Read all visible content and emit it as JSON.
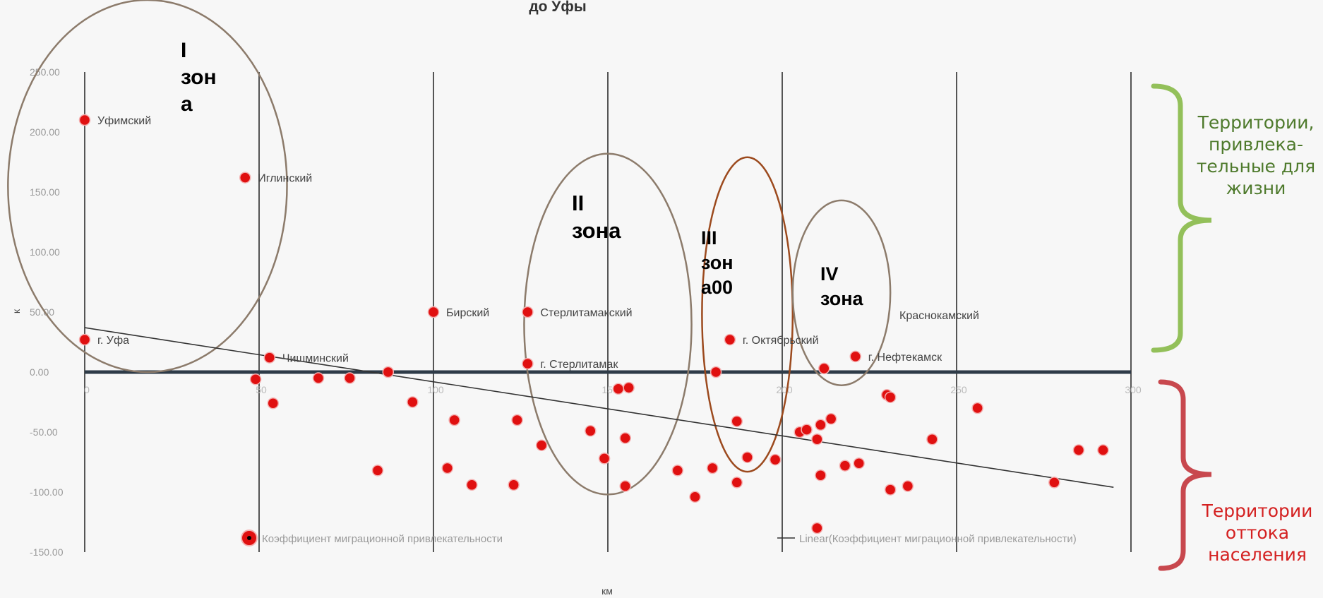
{
  "title": "до Уфы",
  "chart_data": {
    "type": "scatter",
    "title": "до Уфы",
    "xlabel": "км",
    "ylabel": "к",
    "xlim": [
      0,
      300
    ],
    "ylim": [
      -150,
      250
    ],
    "x_ticks": [
      "0",
      "50",
      "100",
      "150",
      "200",
      "250",
      "300"
    ],
    "y_ticks": [
      "250.00",
      "200.00",
      "150.00",
      "100.00",
      "50.00",
      "0.00",
      "-50.00",
      "-100.00",
      "-150.00"
    ],
    "grid": "vertical",
    "series": [
      {
        "name": "Коэффициент миграционной привлекательности",
        "color": "#e01010",
        "points": [
          {
            "x": 0,
            "y": 210,
            "label": "Уфимский"
          },
          {
            "x": 46,
            "y": 162,
            "label": "Иглинский"
          },
          {
            "x": 0,
            "y": 27,
            "label": "г. Уфа"
          },
          {
            "x": 53,
            "y": 12,
            "label": "Чишминский"
          },
          {
            "x": 100,
            "y": 50,
            "label": "Бирский"
          },
          {
            "x": 127,
            "y": 50,
            "label": "Стерлитамакский"
          },
          {
            "x": 127,
            "y": 7,
            "label": "г. Стерлитамак"
          },
          {
            "x": 185,
            "y": 27,
            "label": "г. Октябрьский"
          },
          {
            "x": 221,
            "y": 13,
            "label": "г. Нефтекамск"
          },
          {
            "x": 49,
            "y": -6,
            "label": ""
          },
          {
            "x": 54,
            "y": -26,
            "label": ""
          },
          {
            "x": 67,
            "y": -5,
            "label": ""
          },
          {
            "x": 76,
            "y": -5,
            "label": ""
          },
          {
            "x": 87,
            "y": 0,
            "label": ""
          },
          {
            "x": 94,
            "y": -25,
            "label": ""
          },
          {
            "x": 84,
            "y": -82,
            "label": ""
          },
          {
            "x": 104,
            "y": -80,
            "label": ""
          },
          {
            "x": 106,
            "y": -40,
            "label": ""
          },
          {
            "x": 111,
            "y": -94,
            "label": ""
          },
          {
            "x": 123,
            "y": -94,
            "label": ""
          },
          {
            "x": 124,
            "y": -40,
            "label": ""
          },
          {
            "x": 131,
            "y": -61,
            "label": ""
          },
          {
            "x": 145,
            "y": -49,
            "label": ""
          },
          {
            "x": 149,
            "y": -72,
            "label": ""
          },
          {
            "x": 153,
            "y": -14,
            "label": ""
          },
          {
            "x": 156,
            "y": -13,
            "label": ""
          },
          {
            "x": 155,
            "y": -55,
            "label": ""
          },
          {
            "x": 155,
            "y": -95,
            "label": ""
          },
          {
            "x": 170,
            "y": -82,
            "label": ""
          },
          {
            "x": 175,
            "y": -104,
            "label": ""
          },
          {
            "x": 180,
            "y": -80,
            "label": ""
          },
          {
            "x": 181,
            "y": 0,
            "label": ""
          },
          {
            "x": 187,
            "y": -41,
            "label": ""
          },
          {
            "x": 187,
            "y": -92,
            "label": ""
          },
          {
            "x": 190,
            "y": -71,
            "label": ""
          },
          {
            "x": 198,
            "y": -73,
            "label": ""
          },
          {
            "x": 205,
            "y": -50,
            "label": ""
          },
          {
            "x": 207,
            "y": -48,
            "label": ""
          },
          {
            "x": 210,
            "y": -56,
            "label": ""
          },
          {
            "x": 211,
            "y": -44,
            "label": ""
          },
          {
            "x": 212,
            "y": 3,
            "label": ""
          },
          {
            "x": 211,
            "y": -86,
            "label": ""
          },
          {
            "x": 210,
            "y": -130,
            "label": ""
          },
          {
            "x": 214,
            "y": -39,
            "label": ""
          },
          {
            "x": 218,
            "y": -78,
            "label": ""
          },
          {
            "x": 222,
            "y": -76,
            "label": ""
          },
          {
            "x": 230,
            "y": -19,
            "label": ""
          },
          {
            "x": 231,
            "y": -21,
            "label": ""
          },
          {
            "x": 231,
            "y": -98,
            "label": ""
          },
          {
            "x": 236,
            "y": -95,
            "label": ""
          },
          {
            "x": 243,
            "y": -56,
            "label": ""
          },
          {
            "x": 256,
            "y": -30,
            "label": ""
          },
          {
            "x": 278,
            "y": -92,
            "label": ""
          },
          {
            "x": 285,
            "y": -65,
            "label": ""
          },
          {
            "x": 292,
            "y": -65,
            "label": ""
          }
        ]
      }
    ],
    "trendline": {
      "name": "Linear(Коэффициент миграционной привлекательности)",
      "from": {
        "x": 0,
        "y": 37
      },
      "to": {
        "x": 295,
        "y": -96
      }
    },
    "annotations": {
      "floating_label": "Краснокамский",
      "zones": [
        {
          "lines": [
            "I",
            "зон",
            "а"
          ],
          "cx": 18,
          "cy": 155,
          "rx": 40,
          "ry": 155,
          "color": "#8c7b6b"
        },
        {
          "lines": [
            "II",
            "зона"
          ],
          "cx": 150,
          "cy": 40,
          "rx": 24,
          "ry": 142,
          "color": "#8c7b6b"
        },
        {
          "lines": [
            "III",
            "зон",
            "а00"
          ],
          "cx": 190,
          "cy": 48,
          "rx": 13,
          "ry": 131,
          "color": "#9c4a1e"
        },
        {
          "lines": [
            "IV",
            "зона"
          ],
          "cx": 217,
          "cy": 66,
          "rx": 14,
          "ry": 77,
          "color": "#8c7b6b"
        }
      ]
    },
    "legend": {
      "placement": "bottom"
    }
  },
  "side_notes": {
    "top": {
      "text": "Территории, привлека-тельные для жизни",
      "color": "#4e7a2c",
      "bracket_color": "#93c05a"
    },
    "bottom": {
      "text": "Территории оттока населения",
      "color": "#d42020",
      "bracket_color": "#c8484e"
    }
  }
}
